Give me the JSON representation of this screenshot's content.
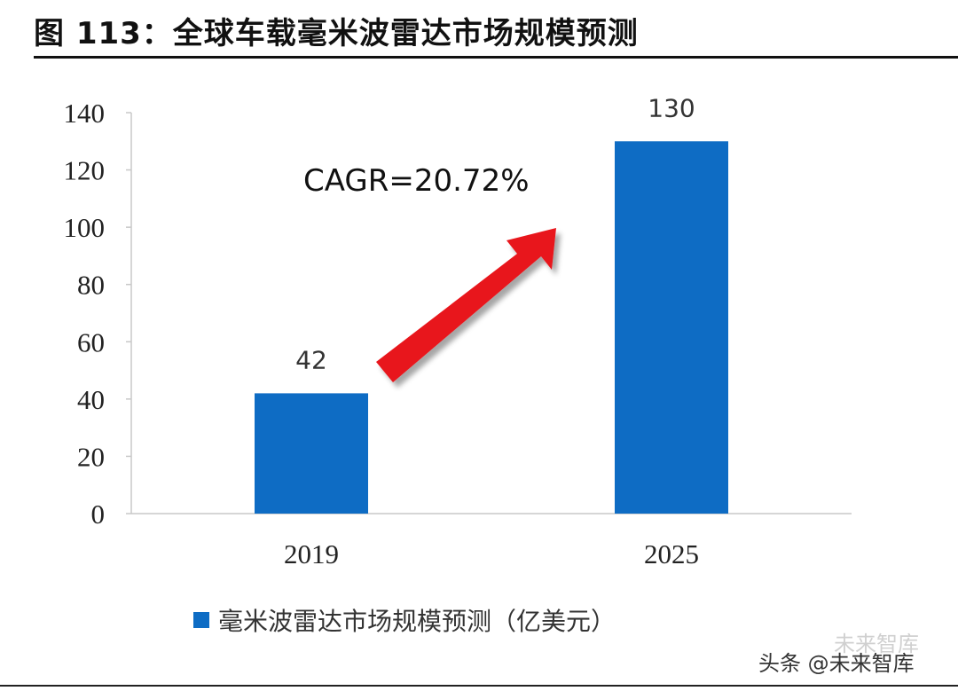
{
  "figure": {
    "title": "图 113：全球车载毫米波雷达市场规模预测"
  },
  "chart_data": {
    "type": "bar",
    "categories": [
      "2019",
      "2025"
    ],
    "series": [
      {
        "name": "毫米波雷达市场规模预测（亿美元）",
        "values": [
          42,
          130
        ],
        "color": "#0E6CC4"
      }
    ],
    "data_labels": [
      "42",
      "130"
    ],
    "ylim": [
      0,
      140
    ],
    "yticks": [
      0,
      20,
      40,
      60,
      80,
      100,
      120,
      140
    ],
    "ytick_labels": [
      "0",
      "20",
      "40",
      "60",
      "80",
      "100",
      "120",
      "140"
    ],
    "grid": false,
    "legend_position": "bottom",
    "annotation": "CAGR=20.72%",
    "arrow_color": "#E8151B",
    "xlabel": "",
    "ylabel": ""
  },
  "watermark": {
    "text": "头条 @未来智库",
    "faint_text": "未来智库"
  }
}
